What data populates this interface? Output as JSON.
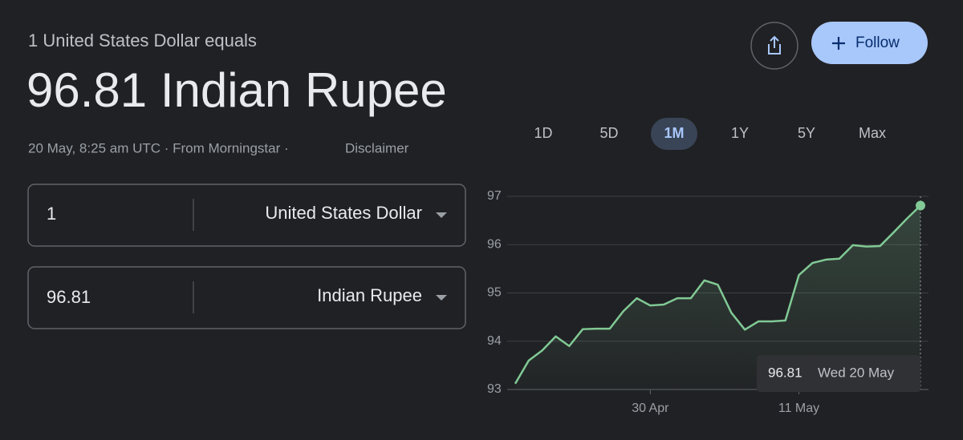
{
  "header": {
    "label": "1 United States Dollar equals",
    "result": "96.81 Indian Rupee",
    "timestamp": "20 May, 8:25 am UTC · From Morningstar ·",
    "disclaimer": "Disclaimer"
  },
  "buttons": {
    "follow": "Follow"
  },
  "converter": {
    "from_amount": "1",
    "from_currency": "United States Dollar",
    "to_amount": "96.81",
    "to_currency": "Indian Rupee"
  },
  "ranges": [
    {
      "label": "1D"
    },
    {
      "label": "5D"
    },
    {
      "label": "1M",
      "selected": true
    },
    {
      "label": "1Y"
    },
    {
      "label": "5Y"
    },
    {
      "label": "Max"
    }
  ],
  "chart_data": {
    "type": "line",
    "color": "#81c995",
    "grid": true,
    "categories": [
      null,
      null,
      null,
      null,
      null,
      null,
      null,
      null,
      null,
      null,
      "30 Apr",
      null,
      null,
      null,
      null,
      null,
      null,
      null,
      null,
      null,
      null,
      "11 May",
      null,
      null,
      null,
      null,
      null,
      null,
      null,
      null,
      null
    ],
    "values": [
      93.12,
      93.6,
      93.81,
      94.1,
      93.9,
      94.25,
      94.26,
      94.26,
      94.62,
      94.89,
      94.74,
      94.76,
      94.89,
      94.89,
      95.26,
      95.17,
      94.59,
      94.24,
      94.41,
      94.41,
      94.43,
      95.37,
      95.62,
      95.69,
      95.71,
      95.99,
      95.96,
      95.97,
      96.25,
      96.54,
      96.81
    ],
    "ylim": [
      93,
      97
    ],
    "yticks": [
      93,
      94,
      95,
      96,
      97
    ],
    "tooltip_date": "Wed 20 May"
  }
}
